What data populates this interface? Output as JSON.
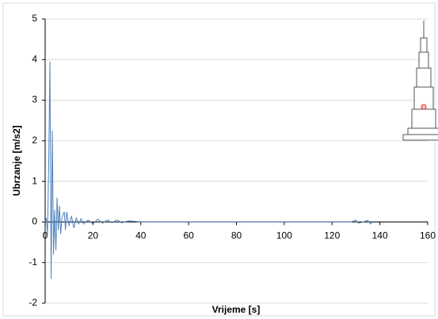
{
  "chart_data": {
    "type": "line",
    "x_label": "Vrijeme [s]",
    "y_label": "Ubrzanje [m/s2]",
    "xlim": [
      0,
      160
    ],
    "xticks": [
      0,
      20,
      40,
      60,
      80,
      100,
      120,
      140,
      160
    ],
    "ylim": [
      -2,
      5
    ],
    "yticks": [
      -2,
      -1,
      0,
      1,
      2,
      3,
      4,
      5
    ],
    "grid": true,
    "series": [
      {
        "color": "#4f81bd",
        "x": [
          0,
          0.5,
          1,
          1.5,
          2,
          2.5,
          3,
          3.5,
          4,
          4.5,
          5,
          5.5,
          6,
          6.5,
          7,
          8,
          8.5,
          9,
          10,
          11,
          12,
          13,
          14,
          15,
          16,
          18,
          20,
          22,
          24,
          26,
          28,
          30,
          32,
          35,
          40,
          60,
          100,
          128,
          130,
          131,
          133,
          135,
          136,
          137
        ],
        "values": [
          0,
          0.1,
          -0.3,
          1.5,
          3.95,
          -1.4,
          2.25,
          -0.8,
          0.3,
          -0.7,
          0.6,
          -0.2,
          0.4,
          -0.3,
          0.1,
          0.25,
          -0.2,
          0.25,
          -0.1,
          0.15,
          -0.15,
          0.1,
          -0.05,
          0.08,
          -0.05,
          0.05,
          -0.05,
          0.07,
          -0.03,
          0.05,
          -0.02,
          0.05,
          -0.02,
          0.03,
          0,
          0,
          0,
          0,
          0.05,
          -0.03,
          0,
          0.04,
          -0.05,
          0
        ]
      }
    ]
  }
}
